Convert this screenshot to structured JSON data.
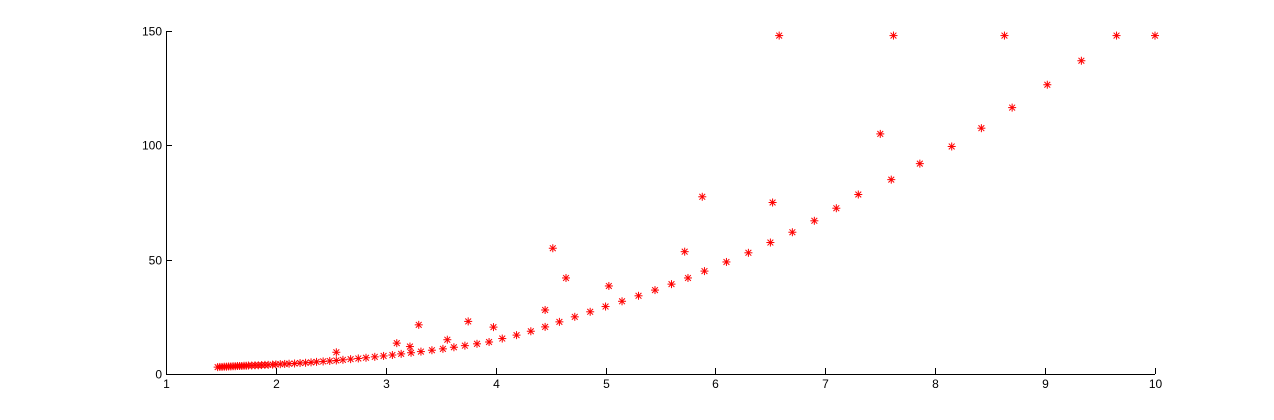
{
  "chart_data": {
    "type": "scatter",
    "title": "",
    "xlabel": "",
    "ylabel": "",
    "xlim": [
      1,
      10
    ],
    "ylim": [
      0,
      150
    ],
    "xticks": [
      1,
      2,
      3,
      4,
      5,
      6,
      7,
      8,
      9,
      10
    ],
    "yticks": [
      0,
      50,
      100,
      150
    ],
    "xtick_labels": [
      "1",
      "2",
      "3",
      "4",
      "5",
      "6",
      "7",
      "8",
      "9",
      "10"
    ],
    "ytick_labels": [
      "0",
      "50",
      "100",
      "150"
    ],
    "grid": false,
    "box": "open-top-right",
    "marker": "asterisk",
    "marker_color": "#ff0000",
    "series": [
      {
        "points": [
          [
            1.47,
            3.0
          ],
          [
            1.49,
            3.1
          ],
          [
            1.51,
            3.1
          ],
          [
            1.53,
            3.2
          ],
          [
            1.55,
            3.2
          ],
          [
            1.57,
            3.3
          ],
          [
            1.59,
            3.3
          ],
          [
            1.61,
            3.4
          ],
          [
            1.63,
            3.4
          ],
          [
            1.65,
            3.5
          ],
          [
            1.67,
            3.5
          ],
          [
            1.69,
            3.5
          ],
          [
            1.71,
            3.6
          ],
          [
            1.73,
            3.6
          ],
          [
            1.75,
            3.7
          ],
          [
            1.78,
            3.7
          ],
          [
            1.81,
            3.8
          ],
          [
            1.84,
            3.8
          ],
          [
            1.87,
            3.9
          ],
          [
            1.9,
            4.0
          ],
          [
            1.93,
            4.0
          ],
          [
            1.97,
            4.1
          ],
          [
            2.0,
            4.2
          ],
          [
            2.04,
            4.3
          ],
          [
            2.08,
            4.4
          ],
          [
            2.12,
            4.5
          ],
          [
            2.17,
            4.6
          ],
          [
            2.22,
            4.8
          ],
          [
            2.27,
            4.9
          ],
          [
            2.32,
            5.1
          ],
          [
            2.37,
            5.3
          ],
          [
            2.43,
            5.5
          ],
          [
            2.49,
            5.7
          ],
          [
            2.55,
            5.9
          ],
          [
            2.61,
            6.2
          ],
          [
            2.68,
            6.5
          ],
          [
            2.75,
            6.8
          ],
          [
            2.82,
            7.1
          ],
          [
            2.9,
            7.5
          ],
          [
            2.98,
            7.9
          ],
          [
            3.06,
            8.3
          ],
          [
            3.14,
            8.8
          ],
          [
            3.23,
            9.3
          ],
          [
            3.32,
            9.8
          ],
          [
            3.42,
            10.4
          ],
          [
            3.52,
            11.0
          ],
          [
            3.62,
            11.7
          ],
          [
            3.72,
            12.4
          ],
          [
            3.83,
            13.2
          ],
          [
            3.94,
            14.0
          ],
          [
            4.06,
            15.5
          ],
          [
            4.19,
            17.0
          ],
          [
            4.32,
            18.7
          ],
          [
            4.45,
            20.6
          ],
          [
            4.58,
            22.8
          ],
          [
            4.72,
            25.0
          ],
          [
            4.86,
            27.2
          ],
          [
            5.0,
            29.5
          ],
          [
            5.15,
            31.8
          ],
          [
            5.3,
            34.2
          ],
          [
            5.45,
            36.7
          ],
          [
            5.6,
            39.3
          ],
          [
            5.75,
            42.0
          ],
          [
            5.9,
            45.0
          ],
          [
            6.1,
            49.0
          ],
          [
            6.3,
            53.0
          ],
          [
            6.5,
            57.5
          ],
          [
            6.7,
            62.0
          ],
          [
            6.9,
            67.0
          ],
          [
            7.1,
            72.5
          ],
          [
            7.3,
            78.5
          ],
          [
            7.6,
            85.0
          ],
          [
            7.86,
            92.0
          ],
          [
            8.15,
            99.5
          ],
          [
            8.42,
            107.5
          ],
          [
            8.7,
            116.5
          ],
          [
            9.02,
            126.5
          ],
          [
            9.33,
            137.0
          ],
          [
            9.65,
            148.0
          ],
          [
            10.0,
            148.0
          ],
          [
            2.55,
            9.5
          ],
          [
            3.1,
            13.5
          ],
          [
            3.22,
            12.0
          ],
          [
            3.3,
            21.5
          ],
          [
            3.56,
            15.0
          ],
          [
            3.75,
            23.0
          ],
          [
            3.98,
            20.5
          ],
          [
            4.45,
            28.0
          ],
          [
            4.52,
            55.0
          ],
          [
            4.64,
            42.0
          ],
          [
            5.03,
            38.5
          ],
          [
            5.72,
            53.5
          ],
          [
            5.88,
            77.5
          ],
          [
            6.52,
            75.0
          ],
          [
            6.58,
            148.0
          ],
          [
            7.5,
            105.0
          ],
          [
            7.62,
            148.0
          ],
          [
            8.63,
            148.0
          ]
        ]
      }
    ]
  }
}
